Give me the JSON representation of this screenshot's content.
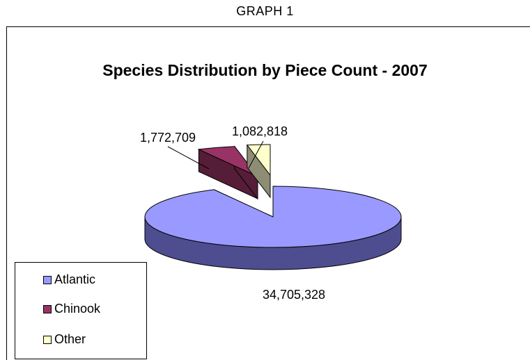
{
  "header": {
    "graph_label": "GRAPH 1"
  },
  "chart_data": {
    "type": "pie",
    "title": "Species Distribution by Piece Count - 2007",
    "slices": [
      {
        "name": "Atlantic",
        "value": 34705328,
        "label": "34,705,328",
        "color": "#9999ff",
        "dark": "#4d4d90"
      },
      {
        "name": "Chinook",
        "value": 1772709,
        "label": "1,772,709",
        "color": "#993366",
        "dark": "#561d38"
      },
      {
        "name": "Other",
        "value": 1082818,
        "label": "1,082,818",
        "color": "#ffffcc",
        "dark": "#8d8d73"
      }
    ],
    "three_d": true,
    "exploded": true,
    "legend_position": "bottom-left"
  },
  "legend": {
    "items": [
      "Atlantic",
      "Chinook",
      "Other"
    ]
  }
}
